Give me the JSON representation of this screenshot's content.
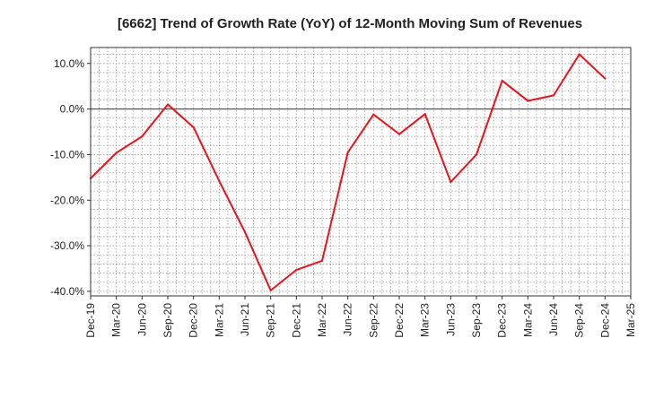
{
  "chart_data": {
    "type": "line",
    "title": "[6662]  Trend of Growth Rate (YoY) of 12-Month Moving Sum of Revenues",
    "xlabel": "",
    "ylabel": "",
    "ylim": [
      -41,
      13.5
    ],
    "yticks": [
      10,
      0,
      -10,
      -20,
      -30,
      -40
    ],
    "ytick_labels": [
      "10.0%",
      "0.0%",
      "-10.0%",
      "-20.0%",
      "-30.0%",
      "-40.0%"
    ],
    "x_range": [
      "Dec-19",
      "Mar-25"
    ],
    "xtick_labels": [
      "Dec-19",
      "Mar-20",
      "Jun-20",
      "Sep-20",
      "Dec-20",
      "Mar-21",
      "Jun-21",
      "Sep-21",
      "Dec-21",
      "Mar-22",
      "Jun-22",
      "Sep-22",
      "Dec-22",
      "Mar-23",
      "Jun-23",
      "Sep-23",
      "Dec-23",
      "Mar-24",
      "Jun-24",
      "Sep-24",
      "Dec-24",
      "Mar-25"
    ],
    "grid": true,
    "line_color": "#e8141c",
    "series": [
      {
        "name": "",
        "x": [
          "Dec-19",
          "Mar-20",
          "Jun-20",
          "Sep-20",
          "Dec-20",
          "Mar-21",
          "Jun-21",
          "Sep-21",
          "Dec-21",
          "Mar-22",
          "Jun-22",
          "Sep-22",
          "Dec-22",
          "Mar-23",
          "Jun-23",
          "Sep-23",
          "Dec-23",
          "Mar-24",
          "Jun-24",
          "Sep-24",
          "Dec-24"
        ],
        "values": [
          -15.2,
          -9.6,
          -6.0,
          1.0,
          -4.0,
          -15.8,
          -27.0,
          -39.8,
          -35.3,
          -33.3,
          -9.5,
          -1.2,
          -5.5,
          -1.1,
          -16.0,
          -10.0,
          6.2,
          1.8,
          3.0,
          12.0,
          6.7
        ]
      }
    ]
  }
}
